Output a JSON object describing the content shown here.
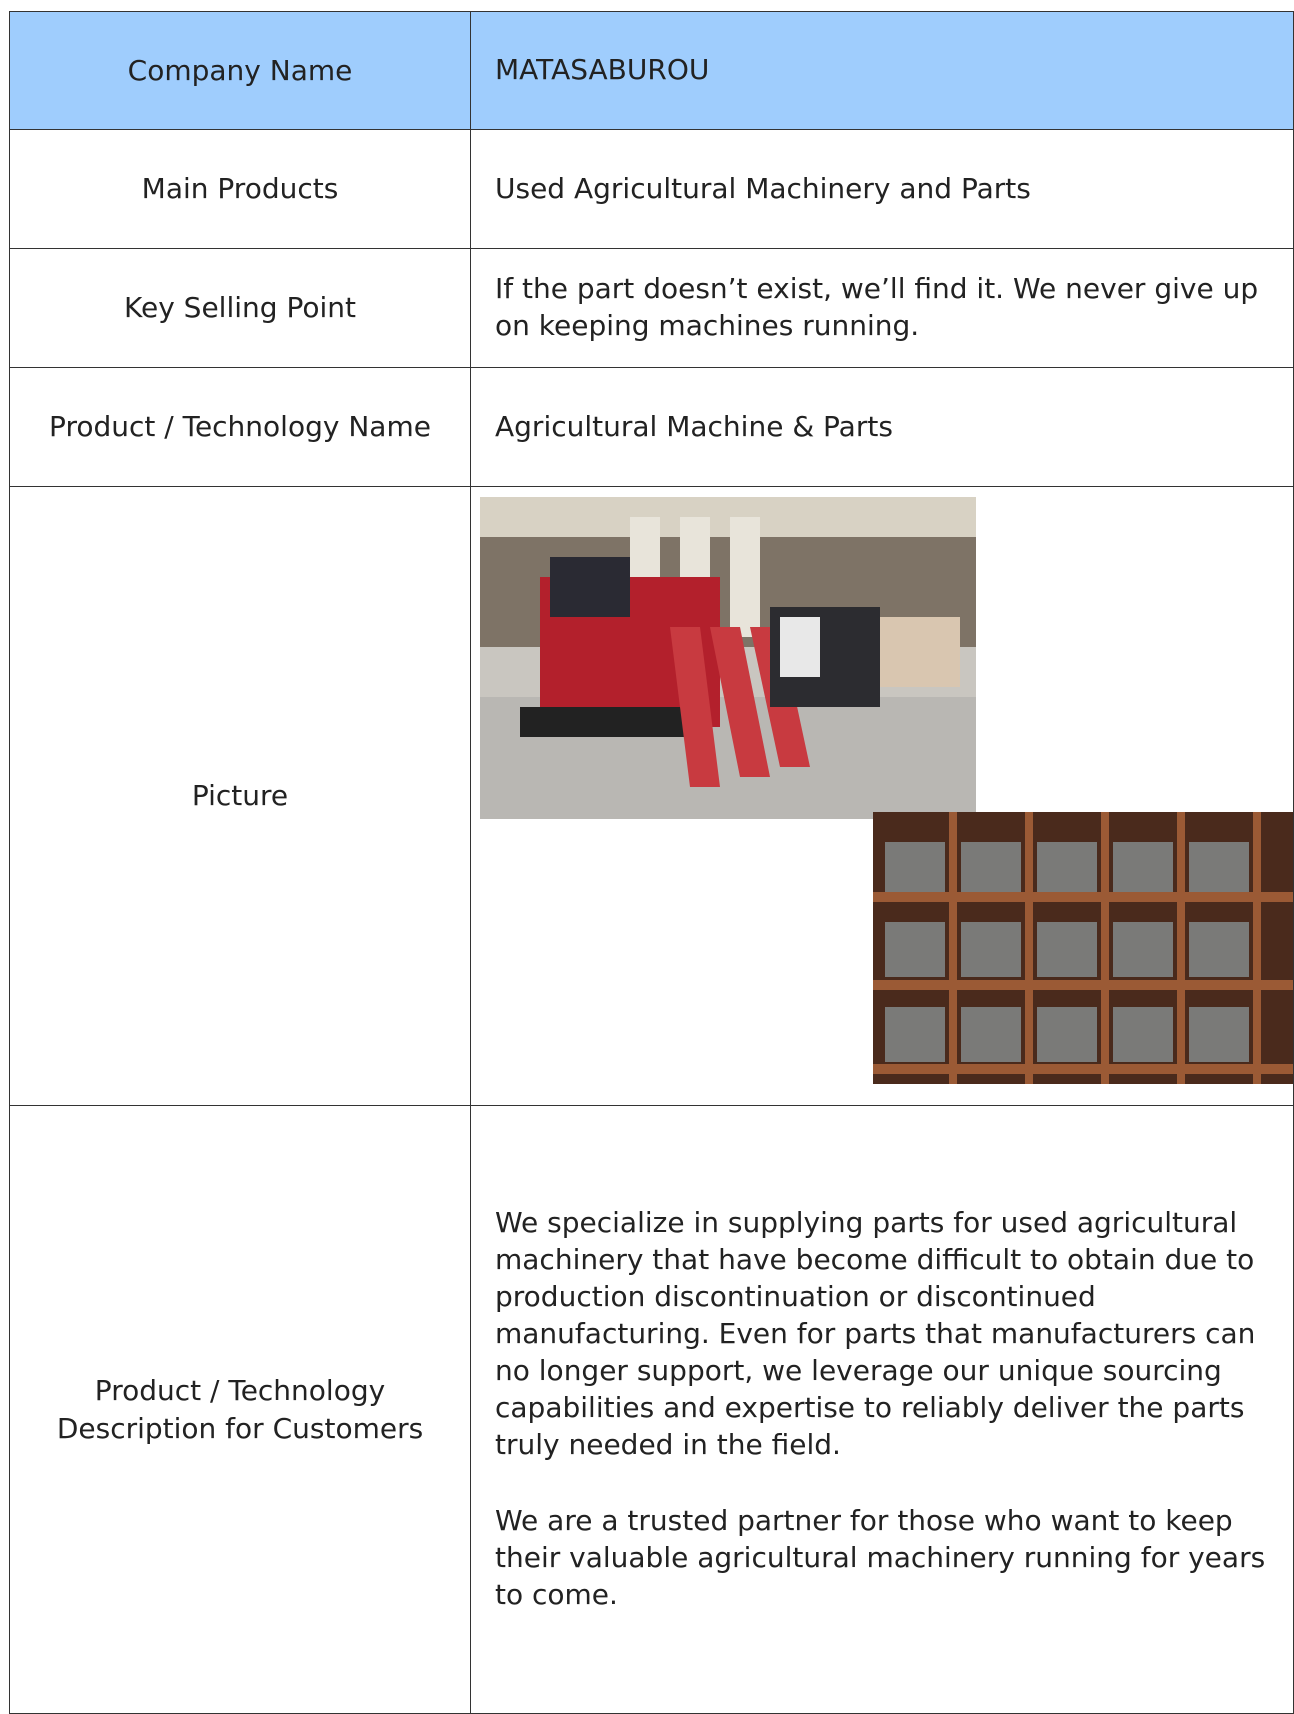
{
  "table": {
    "rows": [
      {
        "label": "Company  Name",
        "value": "MATASABUROU"
      },
      {
        "label": "Main Products",
        "value": "Used Agricultural Machinery and Parts"
      },
      {
        "label": "Key Selling Point",
        "value": "If the part doesn’t exist, we’ll find it. We never give up on keeping machines running."
      },
      {
        "label": "Product / Technology Name",
        "value": "Agricultural  Machine  & Parts"
      },
      {
        "label": "Picture"
      },
      {
        "label": "Product / Technology\nDescription for Customers",
        "paragraphs": [
          "We specialize in supplying parts for used agricultural machinery that have become difficult to obtain due to production discontinuation or discontinued manufacturing. Even for parts that manufacturers can no longer support, we leverage our unique sourcing capabilities and expertise to reliably deliver the parts truly needed in the field.",
          "We are a trusted partner for those who want to keep their valuable agricultural machinery running for years to come."
        ]
      }
    ]
  }
}
